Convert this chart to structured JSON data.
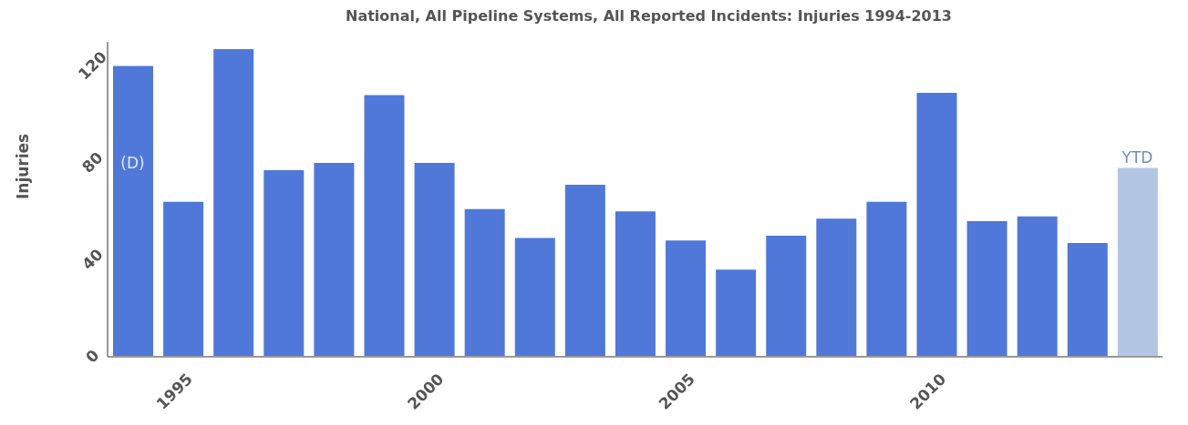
{
  "chart_data": {
    "type": "bar",
    "title": "National, All Pipeline Systems, All Reported Incidents: Injuries 1994-2013",
    "ylabel": "Injuries",
    "x": [
      1994,
      1995,
      1996,
      1997,
      1998,
      1999,
      2000,
      2001,
      2002,
      2003,
      2004,
      2005,
      2006,
      2007,
      2008,
      2009,
      2010,
      2011,
      2012,
      2013,
      2014
    ],
    "values": [
      120,
      64,
      127,
      77,
      80,
      108,
      80,
      61,
      49,
      71,
      60,
      48,
      36,
      50,
      57,
      64,
      109,
      56,
      58,
      47,
      78
    ],
    "colors": [
      "#4f78d8",
      "#4f78d8",
      "#4f78d8",
      "#4f78d8",
      "#4f78d8",
      "#4f78d8",
      "#4f78d8",
      "#4f78d8",
      "#4f78d8",
      "#4f78d8",
      "#4f78d8",
      "#4f78d8",
      "#4f78d8",
      "#4f78d8",
      "#4f78d8",
      "#4f78d8",
      "#4f78d8",
      "#4f78d8",
      "#4f78d8",
      "#4f78d8",
      "#b3c6e4"
    ],
    "xlim": [
      1993.5,
      2014.5
    ],
    "xticks": [
      1995,
      2000,
      2005,
      2010
    ],
    "ylim": [
      0,
      130
    ],
    "yticks": [
      0,
      40,
      80,
      120
    ],
    "annotations": [
      "(D)",
      "YTD"
    ],
    "grid": false,
    "legend": false
  }
}
